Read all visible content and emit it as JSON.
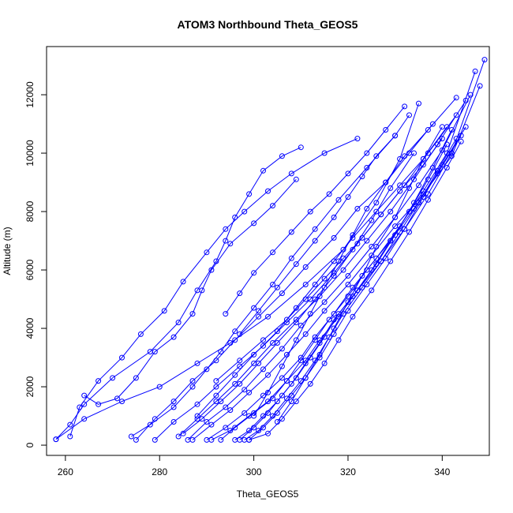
{
  "chart_data": {
    "type": "scatter",
    "title": "ATOM3 Northbound Theta_GEOS5",
    "xlabel": "Theta_GEOS5",
    "ylabel": "Altitude (m)",
    "xlim": [
      256,
      350
    ],
    "ylim": [
      -350,
      13650
    ],
    "x_ticks": [
      260,
      280,
      300,
      320,
      340
    ],
    "y_ticks": [
      0,
      2000,
      4000,
      6000,
      8000,
      10000,
      12000
    ],
    "grid": false,
    "legend": "none",
    "marker": "open-circle",
    "connected": true,
    "color": "#0000ff",
    "series": [
      {
        "x": [
          258,
          261,
          264,
          270,
          278,
          284,
          288,
          292,
          294,
          296,
          299,
          302,
          306,
          310
        ],
        "y": [
          200,
          700,
          1400,
          2300,
          3200,
          4200,
          5300,
          6300,
          7000,
          7800,
          8600,
          9400,
          9900,
          10200
        ]
      },
      {
        "x": [
          261,
          263,
          267,
          272,
          276,
          281,
          285,
          290,
          294,
          298,
          303,
          308,
          315,
          322
        ],
        "y": [
          300,
          1300,
          2200,
          3000,
          3800,
          4600,
          5600,
          6600,
          7400,
          8000,
          8700,
          9300,
          10000,
          10500
        ]
      },
      {
        "x": [
          264,
          267,
          271,
          275,
          279,
          283,
          287,
          289,
          291,
          295,
          300,
          304,
          309
        ],
        "y": [
          1700,
          1400,
          1600,
          2300,
          3200,
          3700,
          4500,
          5300,
          6000,
          6900,
          7600,
          8200,
          9100
        ]
      },
      {
        "x": [
          258,
          264,
          272,
          280,
          288,
          295,
          303,
          311,
          319,
          326,
          331,
          335
        ],
        "y": [
          200,
          900,
          1500,
          2000,
          2800,
          3500,
          4400,
          5500,
          6700,
          8300,
          9800,
          11700
        ]
      },
      {
        "x": [
          274,
          278,
          283,
          287,
          290,
          293,
          296,
          300,
          304,
          308,
          313,
          318,
          324,
          330
        ],
        "y": [
          300,
          700,
          1300,
          2000,
          2600,
          3200,
          3900,
          4700,
          5500,
          6400,
          7400,
          8400,
          9500,
          10600
        ]
      },
      {
        "x": [
          275,
          279,
          283,
          287,
          292,
          296,
          301,
          306,
          311,
          317,
          322,
          328,
          333,
          338
        ],
        "y": [
          180,
          900,
          1500,
          2200,
          2900,
          3600,
          4400,
          5200,
          6100,
          7100,
          8100,
          9000,
          10000,
          11000
        ]
      },
      {
        "x": [
          279,
          283,
          288,
          292,
          297,
          302,
          307,
          312,
          317,
          322,
          327,
          332,
          337,
          343
        ],
        "y": [
          180,
          800,
          1400,
          2000,
          2700,
          3400,
          4200,
          5000,
          5900,
          6900,
          7900,
          8900,
          10000,
          11300
        ]
      },
      {
        "x": [
          284,
          288,
          292,
          296,
          300,
          304,
          309,
          314,
          319,
          324,
          329,
          334,
          339,
          345
        ],
        "y": [
          300,
          900,
          1500,
          2100,
          2800,
          3500,
          4300,
          5100,
          6000,
          7000,
          8000,
          9100,
          10300,
          11800
        ]
      },
      {
        "x": [
          286,
          290,
          294,
          298,
          302,
          306,
          310,
          315,
          320,
          325,
          330,
          335,
          340,
          346
        ],
        "y": [
          180,
          800,
          1300,
          1900,
          2600,
          3300,
          4100,
          4900,
          5800,
          6800,
          7800,
          8900,
          10100,
          12000
        ]
      },
      {
        "x": [
          287,
          291,
          295,
          299,
          303,
          307,
          311,
          315,
          320,
          325,
          330,
          336,
          342,
          348
        ],
        "y": [
          180,
          700,
          1200,
          1800,
          2400,
          3100,
          3800,
          4600,
          5500,
          6500,
          7500,
          8600,
          9900,
          12300
        ]
      },
      {
        "x": [
          290,
          294,
          298,
          302,
          306,
          310,
          313,
          317,
          321,
          326,
          331,
          336,
          341,
          347
        ],
        "y": [
          180,
          600,
          1100,
          1700,
          2300,
          3000,
          3700,
          4500,
          5400,
          6400,
          7500,
          8700,
          10000,
          12800
        ]
      },
      {
        "x": [
          291,
          295,
          299,
          303,
          307,
          311,
          314,
          318,
          322,
          327,
          332,
          337,
          342,
          349
        ],
        "y": [
          180,
          500,
          1000,
          1500,
          2200,
          2900,
          3600,
          4400,
          5300,
          6300,
          7400,
          8600,
          10000,
          13200
        ]
      },
      {
        "x": [
          293,
          296,
          300,
          304,
          307,
          310,
          313,
          316,
          320,
          324,
          329,
          334,
          339,
          344
        ],
        "y": [
          180,
          600,
          1100,
          1600,
          2200,
          2900,
          3600,
          4300,
          5100,
          6000,
          7000,
          8100,
          9300,
          10600
        ]
      },
      {
        "x": [
          296,
          299,
          302,
          305,
          308,
          311,
          314,
          317,
          321,
          325,
          329,
          333,
          337,
          341
        ],
        "y": [
          180,
          500,
          1000,
          1500,
          2100,
          2800,
          3500,
          4300,
          5100,
          6000,
          7000,
          8000,
          9100,
          10300
        ]
      },
      {
        "x": [
          297,
          300,
          303,
          306,
          309,
          312,
          315,
          318,
          322,
          326,
          330,
          334,
          338,
          342
        ],
        "y": [
          180,
          600,
          1100,
          1700,
          2300,
          3000,
          3700,
          4500,
          5300,
          6200,
          7200,
          8300,
          9500,
          10800
        ]
      },
      {
        "x": [
          298,
          301,
          304,
          307,
          310,
          313,
          316,
          319,
          323,
          327,
          331,
          335,
          339,
          343
        ],
        "y": [
          180,
          500,
          1000,
          1600,
          2200,
          2900,
          3700,
          4500,
          5400,
          6300,
          7300,
          8300,
          9400,
          10500
        ]
      },
      {
        "x": [
          299,
          302,
          305,
          308,
          311,
          314,
          317,
          320,
          324,
          328,
          332,
          336,
          340,
          345
        ],
        "y": [
          180,
          600,
          1100,
          1700,
          2300,
          3000,
          3800,
          4600,
          5500,
          6400,
          7400,
          8500,
          9600,
          10900
        ]
      },
      {
        "x": [
          299,
          303,
          306,
          309,
          312,
          315,
          318,
          321,
          325,
          329,
          333,
          337,
          341,
          344
        ],
        "y": [
          180,
          400,
          900,
          1500,
          2100,
          2800,
          3600,
          4400,
          5300,
          6300,
          7300,
          8400,
          9500,
          10400
        ]
      },
      {
        "x": [
          285,
          289,
          293,
          297,
          301,
          305,
          309,
          313,
          317,
          321,
          325,
          329,
          334
        ],
        "y": [
          400,
          900,
          1500,
          2100,
          2800,
          3500,
          4200,
          5000,
          5800,
          6700,
          7700,
          8800,
          10000
        ]
      },
      {
        "x": [
          288,
          292,
          296,
          300,
          305,
          309,
          313,
          317,
          321,
          326,
          331,
          336,
          341
        ],
        "y": [
          1000,
          1700,
          2400,
          3100,
          3900,
          4700,
          5500,
          6300,
          7100,
          8000,
          8900,
          9800,
          10900
        ]
      },
      {
        "x": [
          292,
          297,
          302,
          307,
          311,
          315,
          319,
          323,
          327,
          331,
          336,
          340
        ],
        "y": [
          2200,
          2900,
          3600,
          4300,
          5000,
          5700,
          6400,
          7100,
          7900,
          8700,
          9600,
          10500
        ]
      },
      {
        "x": [
          300,
          303,
          306,
          309,
          312,
          315,
          318,
          321,
          324,
          328,
          332,
          337,
          343
        ],
        "y": [
          1000,
          1800,
          2700,
          3600,
          4500,
          5400,
          6300,
          7200,
          8100,
          9000,
          9900,
          10800,
          11900
        ]
      },
      {
        "x": [
          305,
          308,
          311,
          314,
          317,
          320,
          323,
          326,
          330,
          333,
          336,
          340
        ],
        "y": [
          800,
          1500,
          2300,
          3100,
          4000,
          4900,
          5800,
          6800,
          7800,
          8800,
          9800,
          10900
        ]
      },
      {
        "x": [
          297,
          301,
          305,
          309,
          313,
          317,
          320,
          323,
          326,
          330,
          333
        ],
        "y": [
          3800,
          4600,
          5400,
          6200,
          7000,
          7800,
          8500,
          9200,
          9900,
          10600,
          11300
        ]
      },
      {
        "x": [
          294,
          297,
          300,
          304,
          308,
          312,
          316,
          320,
          324,
          328,
          332
        ],
        "y": [
          4500,
          5200,
          5900,
          6600,
          7300,
          8000,
          8600,
          9300,
          10000,
          10800,
          11600
        ]
      }
    ]
  }
}
